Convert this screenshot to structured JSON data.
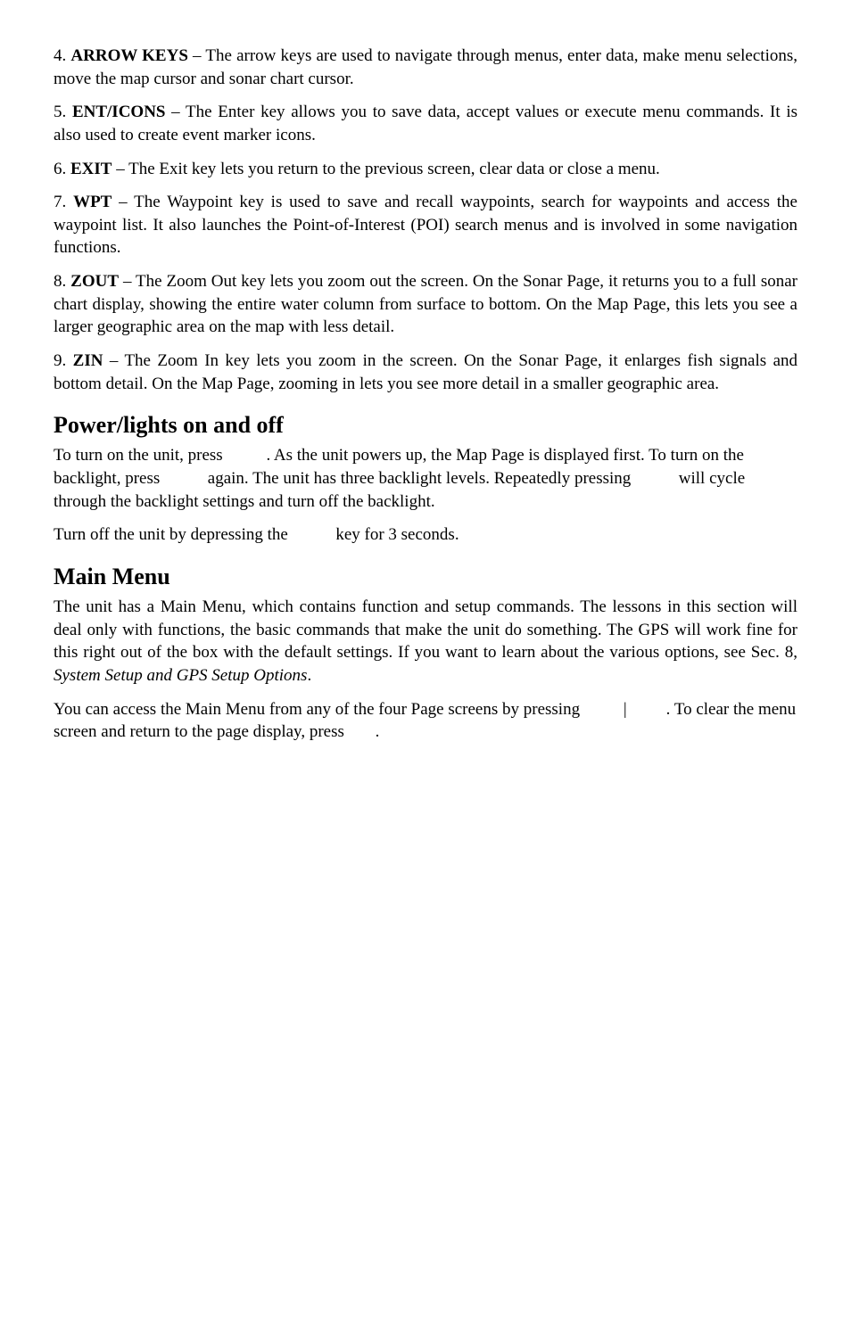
{
  "items": {
    "4": {
      "num": "4. ",
      "term": "ARROW KEYS",
      "sep": " – ",
      "text": "The arrow keys are used to navigate through menus, enter data, make menu selections, move the map cursor and sonar chart cursor."
    },
    "5": {
      "num": "5. ",
      "term": "ENT/ICONS",
      "sep": " – ",
      "text": "The Enter key allows you to save data, accept values or execute menu commands. It is also used to create event marker icons."
    },
    "6": {
      "num": "6. ",
      "term": "EXIT",
      "sep": " – ",
      "text": "The Exit key lets you return to the previous screen, clear data or close a menu."
    },
    "7": {
      "num": "7. ",
      "term": "WPT",
      "sep": " – ",
      "text": "The Waypoint key is used to save and recall waypoints, search for waypoints and access the waypoint list. It also launches the Point-of-Interest (POI) search menus and is involved in some navigation functions."
    },
    "8": {
      "num": "8. ",
      "term": "ZOUT",
      "sep": " – ",
      "text": "The Zoom Out key lets you zoom out the screen. On the Sonar Page, it returns you to a full sonar chart display, showing the entire water column from surface to bottom. On the Map Page, this lets you see a larger geographic area on the map with less detail."
    },
    "9": {
      "num": "9. ",
      "term": "ZIN",
      "sep": " – ",
      "text": "The Zoom In key lets you zoom in the screen. On the Sonar Page, it enlarges fish signals and bottom detail. On the Map Page, zooming in lets you see more detail in a smaller geographic area."
    }
  },
  "power": {
    "heading": "Power/lights on and off",
    "p1a": "To turn on the unit, press ",
    "p1b": ". As the unit powers up, the Map Page is displayed first. To turn on the backlight, press ",
    "p1c": " again. The unit has three backlight levels. Repeatedly pressing ",
    "p1d": " will cycle through the backlight settings and turn off the backlight.",
    "p2a": "Turn off the unit by depressing the ",
    "p2b": " key for 3 seconds."
  },
  "mainmenu": {
    "heading": "Main Menu",
    "p1a": "The unit has a Main Menu, which contains function and setup commands. The lessons in this section will deal only with functions, the basic commands that make the unit do something. The GPS will work fine for this right out of the box with the default settings. If you want to learn about the various options, see Sec. 8, ",
    "p1_italic": "System Setup and GPS Setup Options",
    "p1b": ".",
    "p2a": "You can access the Main Menu from any of the four Page screens by pressing ",
    "p2bar": "|",
    "p2b": ". To clear the menu screen and return to the page display, press ",
    "p2c": "."
  }
}
